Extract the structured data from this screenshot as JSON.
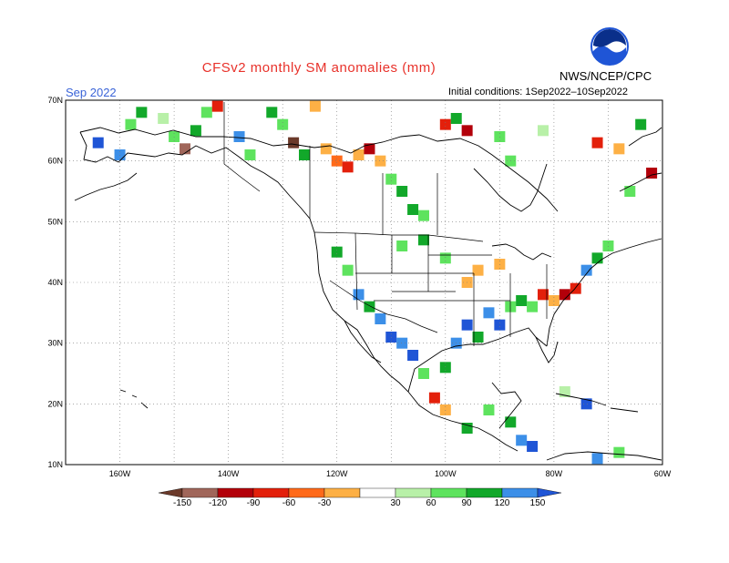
{
  "title": "CFSv2 monthly SM anomalies (mm)",
  "month": "Sep 2022",
  "initial_conditions": "Initial conditions: 1Sep2022–10Sep2022",
  "agency": "NWS/NCEP/CPC",
  "logo_text": "NOAA",
  "map": {
    "lon_range": [
      -170,
      -60
    ],
    "lat_range": [
      10,
      70
    ],
    "lat_labels": [
      "70N",
      "60N",
      "50N",
      "40N",
      "30N",
      "20N",
      "10N"
    ],
    "lon_labels": [
      "160W",
      "140W",
      "120W",
      "100W",
      "80W",
      "60W"
    ]
  },
  "colorbar": {
    "labels": [
      "-150",
      "-120",
      "-90",
      "-60",
      "-30",
      "30",
      "60",
      "90",
      "120",
      "150"
    ],
    "colors": [
      "#6b3a2a",
      "#a0665a",
      "#b3000a",
      "#e3200b",
      "#ff6a1a",
      "#fdb045",
      "#ffffff",
      "#b8f0a8",
      "#5ee35e",
      "#12a82a",
      "#3c8fe8",
      "#1f55d6"
    ]
  },
  "anomaly_cells": [
    {
      "lon": -164,
      "lat": 63,
      "c": "#1f55d6"
    },
    {
      "lon": -160,
      "lat": 61,
      "c": "#3c8fe8"
    },
    {
      "lon": -158,
      "lat": 66,
      "c": "#5ee35e"
    },
    {
      "lon": -156,
      "lat": 68,
      "c": "#12a82a"
    },
    {
      "lon": -152,
      "lat": 67,
      "c": "#b8f0a8"
    },
    {
      "lon": -150,
      "lat": 64,
      "c": "#5ee35e"
    },
    {
      "lon": -148,
      "lat": 62,
      "c": "#a0665a"
    },
    {
      "lon": -146,
      "lat": 65,
      "c": "#12a82a"
    },
    {
      "lon": -144,
      "lat": 68,
      "c": "#5ee35e"
    },
    {
      "lon": -142,
      "lat": 69,
      "c": "#e3200b"
    },
    {
      "lon": -138,
      "lat": 64,
      "c": "#3c8fe8"
    },
    {
      "lon": -136,
      "lat": 61,
      "c": "#5ee35e"
    },
    {
      "lon": -132,
      "lat": 68,
      "c": "#12a82a"
    },
    {
      "lon": -130,
      "lat": 66,
      "c": "#5ee35e"
    },
    {
      "lon": -128,
      "lat": 63,
      "c": "#6b3a2a"
    },
    {
      "lon": -126,
      "lat": 61,
      "c": "#12a82a"
    },
    {
      "lon": -124,
      "lat": 69,
      "c": "#fdb045"
    },
    {
      "lon": -122,
      "lat": 62,
      "c": "#fdb045"
    },
    {
      "lon": -120,
      "lat": 60,
      "c": "#ff6a1a"
    },
    {
      "lon": -118,
      "lat": 59,
      "c": "#e3200b"
    },
    {
      "lon": -116,
      "lat": 61,
      "c": "#fdb045"
    },
    {
      "lon": -114,
      "lat": 62,
      "c": "#b3000a"
    },
    {
      "lon": -112,
      "lat": 60,
      "c": "#fdb045"
    },
    {
      "lon": -110,
      "lat": 57,
      "c": "#5ee35e"
    },
    {
      "lon": -108,
      "lat": 55,
      "c": "#12a82a"
    },
    {
      "lon": -106,
      "lat": 52,
      "c": "#12a82a"
    },
    {
      "lon": -104,
      "lat": 51,
      "c": "#5ee35e"
    },
    {
      "lon": -100,
      "lat": 66,
      "c": "#e3200b"
    },
    {
      "lon": -96,
      "lat": 65,
      "c": "#b3000a"
    },
    {
      "lon": -98,
      "lat": 67,
      "c": "#12a82a"
    },
    {
      "lon": -90,
      "lat": 64,
      "c": "#5ee35e"
    },
    {
      "lon": -88,
      "lat": 60,
      "c": "#5ee35e"
    },
    {
      "lon": -82,
      "lat": 65,
      "c": "#b8f0a8"
    },
    {
      "lon": -72,
      "lat": 63,
      "c": "#e3200b"
    },
    {
      "lon": -68,
      "lat": 62,
      "c": "#fdb045"
    },
    {
      "lon": -64,
      "lat": 66,
      "c": "#12a82a"
    },
    {
      "lon": -62,
      "lat": 58,
      "c": "#b3000a"
    },
    {
      "lon": -66,
      "lat": 55,
      "c": "#5ee35e"
    },
    {
      "lon": -120,
      "lat": 45,
      "c": "#12a82a"
    },
    {
      "lon": -118,
      "lat": 42,
      "c": "#5ee35e"
    },
    {
      "lon": -116,
      "lat": 38,
      "c": "#3c8fe8"
    },
    {
      "lon": -114,
      "lat": 36,
      "c": "#12a82a"
    },
    {
      "lon": -112,
      "lat": 34,
      "c": "#3c8fe8"
    },
    {
      "lon": -110,
      "lat": 31,
      "c": "#1f55d6"
    },
    {
      "lon": -108,
      "lat": 30,
      "c": "#3c8fe8"
    },
    {
      "lon": -106,
      "lat": 28,
      "c": "#1f55d6"
    },
    {
      "lon": -104,
      "lat": 25,
      "c": "#5ee35e"
    },
    {
      "lon": -102,
      "lat": 21,
      "c": "#e3200b"
    },
    {
      "lon": -100,
      "lat": 26,
      "c": "#12a82a"
    },
    {
      "lon": -98,
      "lat": 30,
      "c": "#3c8fe8"
    },
    {
      "lon": -96,
      "lat": 33,
      "c": "#1f55d6"
    },
    {
      "lon": -94,
      "lat": 31,
      "c": "#12a82a"
    },
    {
      "lon": -92,
      "lat": 35,
      "c": "#3c8fe8"
    },
    {
      "lon": -90,
      "lat": 33,
      "c": "#1f55d6"
    },
    {
      "lon": -88,
      "lat": 36,
      "c": "#5ee35e"
    },
    {
      "lon": -86,
      "lat": 37,
      "c": "#12a82a"
    },
    {
      "lon": -84,
      "lat": 36,
      "c": "#5ee35e"
    },
    {
      "lon": -82,
      "lat": 38,
      "c": "#e3200b"
    },
    {
      "lon": -80,
      "lat": 37,
      "c": "#fdb045"
    },
    {
      "lon": -78,
      "lat": 38,
      "c": "#b3000a"
    },
    {
      "lon": -76,
      "lat": 39,
      "c": "#e3200b"
    },
    {
      "lon": -74,
      "lat": 42,
      "c": "#3c8fe8"
    },
    {
      "lon": -72,
      "lat": 44,
      "c": "#12a82a"
    },
    {
      "lon": -70,
      "lat": 46,
      "c": "#5ee35e"
    },
    {
      "lon": -96,
      "lat": 40,
      "c": "#fdb045"
    },
    {
      "lon": -94,
      "lat": 42,
      "c": "#fdb045"
    },
    {
      "lon": -90,
      "lat": 43,
      "c": "#fdb045"
    },
    {
      "lon": -100,
      "lat": 44,
      "c": "#5ee35e"
    },
    {
      "lon": -104,
      "lat": 47,
      "c": "#12a82a"
    },
    {
      "lon": -108,
      "lat": 46,
      "c": "#5ee35e"
    },
    {
      "lon": -92,
      "lat": 19,
      "c": "#5ee35e"
    },
    {
      "lon": -88,
      "lat": 17,
      "c": "#12a82a"
    },
    {
      "lon": -86,
      "lat": 14,
      "c": "#3c8fe8"
    },
    {
      "lon": -84,
      "lat": 13,
      "c": "#1f55d6"
    },
    {
      "lon": -72,
      "lat": 11,
      "c": "#3c8fe8"
    },
    {
      "lon": -68,
      "lat": 12,
      "c": "#5ee35e"
    },
    {
      "lon": -78,
      "lat": 22,
      "c": "#b8f0a8"
    },
    {
      "lon": -74,
      "lat": 20,
      "c": "#1f55d6"
    },
    {
      "lon": -100,
      "lat": 19,
      "c": "#fdb045"
    },
    {
      "lon": -96,
      "lat": 16,
      "c": "#12a82a"
    }
  ]
}
